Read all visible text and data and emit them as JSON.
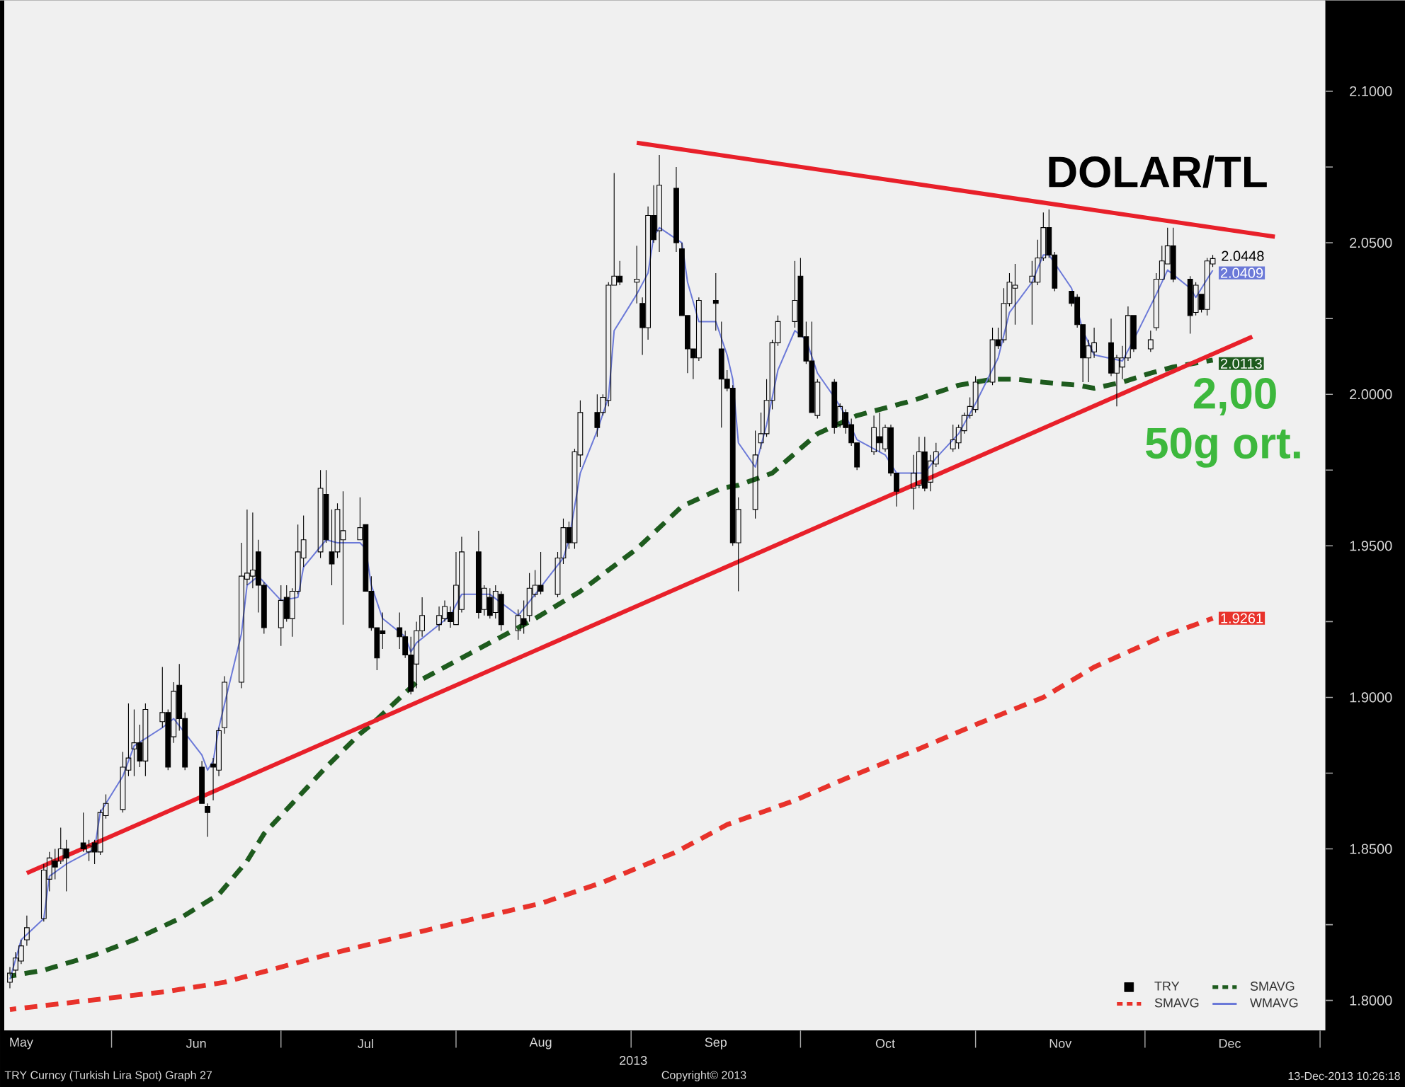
{
  "chart_data": {
    "type": "candlestick",
    "title": "DOLAR/TL",
    "xlabel": "2013",
    "annotations": [
      "2,00",
      "50g ort.",
      "TRY Curncy (Turkish Lira Spot) Graph 27",
      "Copyright© 2013",
      "13-Dec-2013 10:26:18"
    ],
    "xlim": [
      "2013-05-13",
      "2014-01-02"
    ],
    "ylim": [
      1.79,
      2.13
    ],
    "xticks": [
      {
        "value": "2013-05-16",
        "label": "May"
      },
      {
        "value": "2013-06-01",
        "label": null
      },
      {
        "value": "2013-06-16",
        "label": "Jun"
      },
      {
        "value": "2013-07-01",
        "label": null
      },
      {
        "value": "2013-07-16",
        "label": "Jul"
      },
      {
        "value": "2013-08-01",
        "label": null
      },
      {
        "value": "2013-08-16",
        "label": "Aug"
      },
      {
        "value": "2013-09-01",
        "label": null
      },
      {
        "value": "2013-09-16",
        "label": "Sep"
      },
      {
        "value": "2013-10-01",
        "label": null
      },
      {
        "value": "2013-10-16",
        "label": "Oct"
      },
      {
        "value": "2013-11-01",
        "label": null
      },
      {
        "value": "2013-11-16",
        "label": "Nov"
      },
      {
        "value": "2013-12-01",
        "label": null
      },
      {
        "value": "2013-12-16",
        "label": "Dec"
      },
      {
        "value": "2014-01-01",
        "label": null
      }
    ],
    "yticks": [
      {
        "value": 1.8,
        "label": "1.8000"
      },
      {
        "value": 1.825,
        "label": null
      },
      {
        "value": 1.85,
        "label": "1.8500"
      },
      {
        "value": 1.875,
        "label": null
      },
      {
        "value": 1.9,
        "label": "1.9000"
      },
      {
        "value": 1.925,
        "label": null
      },
      {
        "value": 1.95,
        "label": "1.9500"
      },
      {
        "value": 1.975,
        "label": null
      },
      {
        "value": 2.0,
        "label": "2.0000"
      },
      {
        "value": 2.025,
        "label": null
      },
      {
        "value": 2.05,
        "label": "2.0500"
      },
      {
        "value": 2.075,
        "label": null
      },
      {
        "value": 2.1,
        "label": "2.1000"
      }
    ],
    "legend": "bottom right",
    "series": [
      {
        "name": "TRY",
        "type": "candlestick",
        "color": "#000000",
        "x": [
          "2013-05-14",
          "2013-05-15",
          "2013-05-16",
          "2013-05-17",
          "2013-05-20",
          "2013-05-21",
          "2013-05-22",
          "2013-05-23",
          "2013-05-24",
          "2013-05-27",
          "2013-05-28",
          "2013-05-29",
          "2013-05-30",
          "2013-05-31",
          "2013-06-03",
          "2013-06-04",
          "2013-06-05",
          "2013-06-06",
          "2013-06-07",
          "2013-06-10",
          "2013-06-11",
          "2013-06-12",
          "2013-06-13",
          "2013-06-14",
          "2013-06-17",
          "2013-06-18",
          "2013-06-19",
          "2013-06-20",
          "2013-06-21",
          "2013-06-24",
          "2013-06-25",
          "2013-06-26",
          "2013-06-27",
          "2013-06-28",
          "2013-07-01",
          "2013-07-02",
          "2013-07-03",
          "2013-07-04",
          "2013-07-05",
          "2013-07-08",
          "2013-07-09",
          "2013-07-10",
          "2013-07-11",
          "2013-07-12",
          "2013-07-15",
          "2013-07-16",
          "2013-07-17",
          "2013-07-18",
          "2013-07-19",
          "2013-07-22",
          "2013-07-23",
          "2013-07-24",
          "2013-07-25",
          "2013-07-26",
          "2013-07-29",
          "2013-07-30",
          "2013-07-31",
          "2013-08-01",
          "2013-08-02",
          "2013-08-05",
          "2013-08-06",
          "2013-08-07",
          "2013-08-08",
          "2013-08-09",
          "2013-08-12",
          "2013-08-13",
          "2013-08-14",
          "2013-08-15",
          "2013-08-16",
          "2013-08-19",
          "2013-08-20",
          "2013-08-21",
          "2013-08-22",
          "2013-08-23",
          "2013-08-26",
          "2013-08-27",
          "2013-08-28",
          "2013-08-29",
          "2013-08-30",
          "2013-09-02",
          "2013-09-03",
          "2013-09-04",
          "2013-09-05",
          "2013-09-06",
          "2013-09-09",
          "2013-09-10",
          "2013-09-11",
          "2013-09-12",
          "2013-09-13",
          "2013-09-16",
          "2013-09-17",
          "2013-09-18",
          "2013-09-19",
          "2013-09-20",
          "2013-09-23",
          "2013-09-24",
          "2013-09-25",
          "2013-09-26",
          "2013-09-27",
          "2013-09-30",
          "2013-10-01",
          "2013-10-02",
          "2013-10-03",
          "2013-10-04",
          "2013-10-07",
          "2013-10-08",
          "2013-10-09",
          "2013-10-10",
          "2013-10-11",
          "2013-10-14",
          "2013-10-15",
          "2013-10-16",
          "2013-10-17",
          "2013-10-18",
          "2013-10-21",
          "2013-10-22",
          "2013-10-23",
          "2013-10-24",
          "2013-10-25",
          "2013-10-28",
          "2013-10-29",
          "2013-10-30",
          "2013-10-31",
          "2013-11-01",
          "2013-11-04",
          "2013-11-05",
          "2013-11-06",
          "2013-11-07",
          "2013-11-08",
          "2013-11-11",
          "2013-11-12",
          "2013-11-13",
          "2013-11-14",
          "2013-11-15",
          "2013-11-18",
          "2013-11-19",
          "2013-11-20",
          "2013-11-21",
          "2013-11-22",
          "2013-11-25",
          "2013-11-26",
          "2013-11-27",
          "2013-11-28",
          "2013-11-29",
          "2013-12-02",
          "2013-12-03",
          "2013-12-04",
          "2013-12-05",
          "2013-12-06",
          "2013-12-09",
          "2013-12-10",
          "2013-12-11",
          "2013-12-12",
          "2013-12-13"
        ],
        "ohlc": [
          [
            1.806,
            1.811,
            1.804,
            1.809
          ],
          [
            1.81,
            1.816,
            1.808,
            1.814
          ],
          [
            1.813,
            1.82,
            1.812,
            1.818
          ],
          [
            1.82,
            1.828,
            1.818,
            1.824
          ],
          [
            1.827,
            1.845,
            1.826,
            1.843
          ],
          [
            1.84,
            1.849,
            1.836,
            1.847
          ],
          [
            1.846,
            1.85,
            1.84,
            1.844
          ],
          [
            1.846,
            1.857,
            1.845,
            1.85
          ],
          [
            1.85,
            1.853,
            1.836,
            1.847
          ],
          [
            1.852,
            1.862,
            1.849,
            1.85
          ],
          [
            1.849,
            1.853,
            1.846,
            1.851
          ],
          [
            1.852,
            1.853,
            1.845,
            1.849
          ],
          [
            1.849,
            1.863,
            1.848,
            1.862
          ],
          [
            1.861,
            1.868,
            1.86,
            1.865
          ],
          [
            1.863,
            1.882,
            1.862,
            1.877
          ],
          [
            1.876,
            1.898,
            1.874,
            1.88
          ],
          [
            1.883,
            1.896,
            1.874,
            1.885
          ],
          [
            1.885,
            1.891,
            1.877,
            1.879
          ],
          [
            1.879,
            1.898,
            1.874,
            1.896
          ],
          [
            1.892,
            1.91,
            1.89,
            1.895
          ],
          [
            1.895,
            1.896,
            1.876,
            1.877
          ],
          [
            1.887,
            1.905,
            1.885,
            1.902
          ],
          [
            1.904,
            1.911,
            1.889,
            1.893
          ],
          [
            1.893,
            1.895,
            1.876,
            1.877
          ],
          [
            1.877,
            1.879,
            1.865,
            1.865
          ],
          [
            1.864,
            1.865,
            1.854,
            1.862
          ],
          [
            1.878,
            1.88,
            1.866,
            1.877
          ],
          [
            1.876,
            1.89,
            1.874,
            1.889
          ],
          [
            1.89,
            1.907,
            1.888,
            1.905
          ],
          [
            1.905,
            1.951,
            1.903,
            1.94
          ],
          [
            1.939,
            1.962,
            1.937,
            1.941
          ],
          [
            1.94,
            1.961,
            1.936,
            1.942
          ],
          [
            1.948,
            1.952,
            1.928,
            1.937
          ],
          [
            1.937,
            1.938,
            1.921,
            1.923
          ],
          [
            1.923,
            1.937,
            1.917,
            1.932
          ],
          [
            1.933,
            1.937,
            1.925,
            1.926
          ],
          [
            1.926,
            1.936,
            1.92,
            1.935
          ],
          [
            1.935,
            1.957,
            1.934,
            1.948
          ],
          [
            1.946,
            1.96,
            1.943,
            1.952
          ],
          [
            1.948,
            1.975,
            1.946,
            1.969
          ],
          [
            1.967,
            1.975,
            1.951,
            1.952
          ],
          [
            1.948,
            1.962,
            1.937,
            1.944
          ],
          [
            1.948,
            1.964,
            1.946,
            1.962
          ],
          [
            1.952,
            1.968,
            1.924,
            1.955
          ],
          [
            1.952,
            1.966,
            1.952,
            1.956
          ],
          [
            1.957,
            1.957,
            1.935,
            1.935
          ],
          [
            1.935,
            1.94,
            1.922,
            1.923
          ],
          [
            1.923,
            1.923,
            1.909,
            1.913
          ],
          [
            1.922,
            1.928,
            1.916,
            1.921
          ],
          [
            1.923,
            1.928,
            1.916,
            1.92
          ],
          [
            1.92,
            1.922,
            1.913,
            1.914
          ],
          [
            1.914,
            1.92,
            1.901,
            1.902
          ],
          [
            1.911,
            1.925,
            1.903,
            1.922
          ],
          [
            1.922,
            1.933,
            1.92,
            1.927
          ],
          [
            1.924,
            1.93,
            1.922,
            1.927
          ],
          [
            1.926,
            1.932,
            1.925,
            1.93
          ],
          [
            1.928,
            1.93,
            1.923,
            1.925
          ],
          [
            1.924,
            1.948,
            1.924,
            1.937
          ],
          [
            1.929,
            1.953,
            1.928,
            1.948
          ],
          [
            1.948,
            1.955,
            1.926,
            1.928
          ],
          [
            1.929,
            1.937,
            1.927,
            1.936
          ],
          [
            1.933,
            1.936,
            1.926,
            1.927
          ],
          [
            1.928,
            1.937,
            1.926,
            1.935
          ],
          [
            1.934,
            1.935,
            1.922,
            1.924
          ],
          [
            1.922,
            1.929,
            1.919,
            1.927
          ],
          [
            1.926,
            1.932,
            1.921,
            1.924
          ],
          [
            1.927,
            1.941,
            1.925,
            1.936
          ],
          [
            1.934,
            1.942,
            1.933,
            1.937
          ],
          [
            1.937,
            1.948,
            1.934,
            1.935
          ],
          [
            1.934,
            1.948,
            1.933,
            1.946
          ],
          [
            1.946,
            1.959,
            1.944,
            1.956
          ],
          [
            1.956,
            1.958,
            1.949,
            1.951
          ],
          [
            1.951,
            1.982,
            1.949,
            1.981
          ],
          [
            1.98,
            1.998,
            1.976,
            1.994
          ],
          [
            1.994,
            2.0,
            1.986,
            1.989
          ],
          [
            1.994,
            2.0,
            1.993,
            1.999
          ],
          [
            1.998,
            2.037,
            1.996,
            2.036
          ],
          [
            2.036,
            2.073,
            2.036,
            2.039
          ],
          [
            2.039,
            2.044,
            2.036,
            2.037
          ],
          [
            2.037,
            2.049,
            2.03,
            2.038
          ],
          [
            2.03,
            2.032,
            2.013,
            2.022
          ],
          [
            2.022,
            2.062,
            2.018,
            2.059
          ],
          [
            2.059,
            2.069,
            2.05,
            2.051
          ],
          [
            2.054,
            2.079,
            2.047,
            2.069
          ],
          [
            2.068,
            2.075,
            2.047,
            2.05
          ],
          [
            2.048,
            2.05,
            2.026,
            2.026
          ],
          [
            2.026,
            2.026,
            2.007,
            2.015
          ],
          [
            2.015,
            2.015,
            2.005,
            2.012
          ],
          [
            2.012,
            2.032,
            2.011,
            2.031
          ],
          [
            2.031,
            2.04,
            2.021,
            2.03
          ],
          [
            2.015,
            2.024,
            1.989,
            2.005
          ],
          [
            2.005,
            2.008,
            2.001,
            2.002
          ],
          [
            2.002,
            2.003,
            1.95,
            1.951
          ],
          [
            1.951,
            1.966,
            1.935,
            1.962
          ],
          [
            1.962,
            1.988,
            1.959,
            1.98
          ],
          [
            1.984,
            1.994,
            1.982,
            1.987
          ],
          [
            1.987,
            2.005,
            1.986,
            1.998
          ],
          [
            1.998,
            2.018,
            1.995,
            2.017
          ],
          [
            2.017,
            2.026,
            2.016,
            2.024
          ],
          [
            2.024,
            2.044,
            2.022,
            2.031
          ],
          [
            2.039,
            2.045,
            2.019,
            2.019
          ],
          [
            2.019,
            2.024,
            2.01,
            2.011
          ],
          [
            2.011,
            2.024,
            1.994,
            1.994
          ],
          [
            1.993,
            2.005,
            1.992,
            2.004
          ],
          [
            2.004,
            2.005,
            1.987,
            1.989
          ],
          [
            1.99,
            1.997,
            1.989,
            1.996
          ],
          [
            1.994,
            1.995,
            1.987,
            1.989
          ],
          [
            1.99,
            1.992,
            1.983,
            1.984
          ],
          [
            1.984,
            1.984,
            1.975,
            1.976
          ],
          [
            1.981,
            1.993,
            1.98,
            1.989
          ],
          [
            1.986,
            1.994,
            1.981,
            1.984
          ],
          [
            1.982,
            1.99,
            1.981,
            1.989
          ],
          [
            1.989,
            1.99,
            1.973,
            1.974
          ],
          [
            1.974,
            1.974,
            1.963,
            1.968
          ],
          [
            1.969,
            1.98,
            1.962,
            1.974
          ],
          [
            1.97,
            1.986,
            1.969,
            1.981
          ],
          [
            1.981,
            1.986,
            1.968,
            1.969
          ],
          [
            1.971,
            1.98,
            1.968,
            1.978
          ],
          [
            1.977,
            1.984,
            1.976,
            1.981
          ],
          [
            1.982,
            1.99,
            1.981,
            1.985
          ],
          [
            1.984,
            1.99,
            1.982,
            1.989
          ],
          [
            1.988,
            1.994,
            1.987,
            1.993
          ],
          [
            1.993,
            1.999,
            1.992,
            1.996
          ],
          [
            1.995,
            2.006,
            1.994,
            2.004
          ],
          [
            2.004,
            2.022,
            2.003,
            2.018
          ],
          [
            2.018,
            2.022,
            2.015,
            2.016
          ],
          [
            2.018,
            2.035,
            2.017,
            2.03
          ],
          [
            2.03,
            2.04,
            2.029,
            2.037
          ],
          [
            2.035,
            2.043,
            2.023,
            2.036
          ],
          [
            2.037,
            2.044,
            2.023,
            2.039
          ],
          [
            2.037,
            2.051,
            2.036,
            2.045
          ],
          [
            2.045,
            2.06,
            2.044,
            2.055
          ],
          [
            2.055,
            2.061,
            2.045,
            2.046
          ],
          [
            2.046,
            2.047,
            2.034,
            2.035
          ],
          [
            2.034,
            2.034,
            2.029,
            2.03
          ],
          [
            2.032,
            2.033,
            2.022,
            2.023
          ],
          [
            2.023,
            2.023,
            2.004,
            2.012
          ],
          [
            2.012,
            2.018,
            2.004,
            2.016
          ],
          [
            2.014,
            2.022,
            2.012,
            2.017
          ],
          [
            2.017,
            2.025,
            2.006,
            2.007
          ],
          [
            2.007,
            2.013,
            1.996,
            2.012
          ],
          [
            2.009,
            2.016,
            2.005,
            2.012
          ],
          [
            2.012,
            2.029,
            2.011,
            2.026
          ],
          [
            2.026,
            2.026,
            2.014,
            2.015
          ],
          [
            2.015,
            2.021,
            2.014,
            2.018
          ],
          [
            2.022,
            2.04,
            2.021,
            2.038
          ],
          [
            2.038,
            2.049,
            2.038,
            2.044
          ],
          [
            2.043,
            2.055,
            2.043,
            2.049
          ],
          [
            2.049,
            2.055,
            2.037,
            2.038
          ],
          [
            2.038,
            2.039,
            2.02,
            2.026
          ],
          [
            2.027,
            2.037,
            2.026,
            2.036
          ],
          [
            2.033,
            2.033,
            2.027,
            2.028
          ],
          [
            2.028,
            2.045,
            2.026,
            2.044
          ],
          [
            2.043,
            2.046,
            2.042,
            2.0448
          ]
        ],
        "value_labels": [
          null,
          null,
          null,
          null,
          null,
          null,
          null,
          null,
          null,
          null,
          null,
          null,
          null,
          null,
          null,
          null,
          null,
          null,
          null,
          null,
          null,
          null,
          null,
          null,
          null,
          null,
          null,
          null,
          null,
          null,
          null,
          null,
          null,
          null,
          null,
          null,
          null,
          null,
          null,
          null,
          null,
          null,
          null,
          null,
          null,
          null,
          null,
          null,
          null,
          null,
          null,
          null,
          null,
          null,
          null,
          null,
          null,
          null,
          null,
          null,
          null,
          null,
          null,
          null,
          null,
          null,
          null,
          null,
          null,
          null,
          null,
          null,
          null,
          null,
          null,
          null,
          null,
          null,
          null,
          null,
          null,
          null,
          null,
          null,
          null,
          null,
          null,
          null,
          null,
          null,
          null,
          null,
          null,
          null,
          null,
          null,
          null,
          null,
          null,
          null,
          null,
          null,
          null,
          null,
          null,
          null,
          null,
          null,
          null,
          null,
          null,
          null,
          null,
          null,
          null,
          null,
          null,
          null,
          null,
          null,
          null,
          null,
          null,
          null,
          null,
          null,
          null,
          null,
          null,
          null,
          null,
          null,
          null,
          null,
          null,
          null,
          null,
          null,
          null,
          null,
          null,
          null,
          null,
          null,
          null,
          null,
          null,
          null,
          null,
          null,
          null,
          null,
          null,
          "2.0448"
        ]
      },
      {
        "name": "SMAVG",
        "type": "line",
        "color": "#1e5b1e",
        "line_style": "dashed",
        "x": [
          "2013-05-14",
          "2013-05-20",
          "2013-05-29",
          "2013-06-05",
          "2013-06-13",
          "2013-06-20",
          "2013-06-25",
          "2013-06-28",
          "2013-07-03",
          "2013-07-09",
          "2013-07-15",
          "2013-07-17",
          "2013-07-25",
          "2013-08-02",
          "2013-08-15",
          "2013-08-23",
          "2013-09-02",
          "2013-09-10",
          "2013-09-17",
          "2013-09-20",
          "2013-09-26",
          "2013-10-04",
          "2013-10-11",
          "2013-10-21",
          "2013-10-29",
          "2013-11-04",
          "2013-11-08",
          "2013-11-13",
          "2013-11-19",
          "2013-11-22",
          "2013-11-27",
          "2013-12-02",
          "2013-12-06",
          "2013-12-13"
        ],
        "values": [
          1.808,
          1.81,
          1.815,
          1.82,
          1.827,
          1.835,
          1.846,
          1.855,
          1.865,
          1.877,
          1.888,
          1.891,
          1.905,
          1.913,
          1.926,
          1.935,
          1.949,
          1.963,
          1.969,
          1.97,
          1.974,
          1.987,
          1.993,
          1.998,
          2.003,
          2.005,
          2.005,
          2.004,
          2.003,
          2.002,
          2.004,
          2.007,
          2.009,
          2.0113
        ],
        "value_labels": [
          null,
          null,
          null,
          null,
          null,
          null,
          null,
          null,
          null,
          null,
          null,
          null,
          null,
          null,
          null,
          null,
          null,
          null,
          null,
          null,
          null,
          null,
          null,
          null,
          null,
          null,
          null,
          null,
          null,
          null,
          null,
          null,
          null,
          "2.0113"
        ]
      },
      {
        "name": "SMAVG",
        "type": "line",
        "color": "#e8322b",
        "line_style": "dashed",
        "x": [
          "2013-05-14",
          "2013-06-11",
          "2013-06-21",
          "2013-07-09",
          "2013-07-22",
          "2013-08-02",
          "2013-08-16",
          "2013-08-27",
          "2013-09-09",
          "2013-09-18",
          "2013-09-30",
          "2013-10-10",
          "2013-10-22",
          "2013-11-01",
          "2013-11-13",
          "2013-11-22",
          "2013-12-04",
          "2013-12-13"
        ],
        "values": [
          1.797,
          1.803,
          1.806,
          1.815,
          1.821,
          1.826,
          1.832,
          1.839,
          1.849,
          1.858,
          1.866,
          1.874,
          1.883,
          1.891,
          1.9,
          1.91,
          1.92,
          1.9261
        ],
        "value_labels": [
          null,
          null,
          null,
          null,
          null,
          null,
          null,
          null,
          null,
          null,
          null,
          null,
          null,
          null,
          null,
          null,
          null,
          "1.9261"
        ]
      },
      {
        "name": "WMAVG",
        "type": "line",
        "color": "#6b79d8",
        "line_style": "solid",
        "x": [
          "2013-05-14",
          "2013-05-16",
          "2013-05-20",
          "2013-05-21",
          "2013-05-24",
          "2013-05-29",
          "2013-05-30",
          "2013-06-03",
          "2013-06-05",
          "2013-06-10",
          "2013-06-12",
          "2013-06-17",
          "2013-06-18",
          "2013-06-19",
          "2013-06-20",
          "2013-06-24",
          "2013-06-25",
          "2013-06-27",
          "2013-07-01",
          "2013-07-04",
          "2013-07-05",
          "2013-07-09",
          "2013-07-11",
          "2013-07-15",
          "2013-07-16",
          "2013-07-17",
          "2013-07-19",
          "2013-07-23",
          "2013-07-24",
          "2013-07-25",
          "2013-07-29",
          "2013-07-31",
          "2013-08-02",
          "2013-08-07",
          "2013-08-12",
          "2013-08-15",
          "2013-08-20",
          "2013-08-21",
          "2013-08-23",
          "2013-08-26",
          "2013-08-28",
          "2013-08-29",
          "2013-09-02",
          "2013-09-04",
          "2013-09-05",
          "2013-09-06",
          "2013-09-10",
          "2013-09-11",
          "2013-09-13",
          "2013-09-16",
          "2013-09-18",
          "2013-09-19",
          "2013-09-20",
          "2013-09-23",
          "2013-09-25",
          "2013-09-27",
          "2013-09-30",
          "2013-10-02",
          "2013-10-04",
          "2013-10-07",
          "2013-10-09",
          "2013-10-11",
          "2013-10-16",
          "2013-10-18",
          "2013-10-23",
          "2013-10-25",
          "2013-10-29",
          "2013-11-01",
          "2013-11-05",
          "2013-11-07",
          "2013-11-11",
          "2013-11-13",
          "2013-11-14",
          "2013-11-18",
          "2013-11-20",
          "2013-11-22",
          "2013-11-27",
          "2013-11-29",
          "2013-12-03",
          "2013-12-05",
          "2013-12-09",
          "2013-12-10",
          "2013-12-12",
          "2013-12-13"
        ],
        "values": [
          1.807,
          1.82,
          1.827,
          1.841,
          1.845,
          1.85,
          1.862,
          1.874,
          1.884,
          1.89,
          1.893,
          1.881,
          1.876,
          1.879,
          1.89,
          1.921,
          1.937,
          1.94,
          1.932,
          1.933,
          1.943,
          1.952,
          1.951,
          1.951,
          1.949,
          1.937,
          1.926,
          1.92,
          1.915,
          1.918,
          1.924,
          1.927,
          1.934,
          1.934,
          1.927,
          1.934,
          1.946,
          1.952,
          1.974,
          1.988,
          1.999,
          2.021,
          2.033,
          2.04,
          2.052,
          2.055,
          2.05,
          2.037,
          2.024,
          2.024,
          2.013,
          2.005,
          1.984,
          1.976,
          1.99,
          2.008,
          2.021,
          2.018,
          2.007,
          1.999,
          1.993,
          1.985,
          1.98,
          1.974,
          1.974,
          1.979,
          1.987,
          1.997,
          2.012,
          2.027,
          2.037,
          2.046,
          2.046,
          2.035,
          2.021,
          2.013,
          2.011,
          2.018,
          2.033,
          2.041,
          2.035,
          2.032,
          2.038,
          2.0409
        ],
        "value_labels": [
          null,
          null,
          null,
          null,
          null,
          null,
          null,
          null,
          null,
          null,
          null,
          null,
          null,
          null,
          null,
          null,
          null,
          null,
          null,
          null,
          null,
          null,
          null,
          null,
          null,
          null,
          null,
          null,
          null,
          null,
          null,
          null,
          null,
          null,
          null,
          null,
          null,
          null,
          null,
          null,
          null,
          null,
          null,
          null,
          null,
          null,
          null,
          null,
          null,
          null,
          null,
          null,
          null,
          null,
          null,
          null,
          null,
          null,
          null,
          null,
          null,
          null,
          null,
          null,
          null,
          null,
          null,
          null,
          null,
          null,
          null,
          null,
          null,
          null,
          null,
          null,
          null,
          null,
          null,
          null,
          null,
          null,
          null,
          "2.0409"
        ]
      },
      {
        "type": "line",
        "color": "#e8202a",
        "line_style": "solid",
        "x": [
          "2013-05-17",
          "2013-12-20"
        ],
        "values": [
          1.842,
          2.019
        ]
      },
      {
        "type": "line",
        "color": "#e8202a",
        "line_style": "solid",
        "x": [
          "2013-09-02",
          "2013-12-24"
        ],
        "values": [
          2.083,
          2.052
        ]
      }
    ]
  }
}
